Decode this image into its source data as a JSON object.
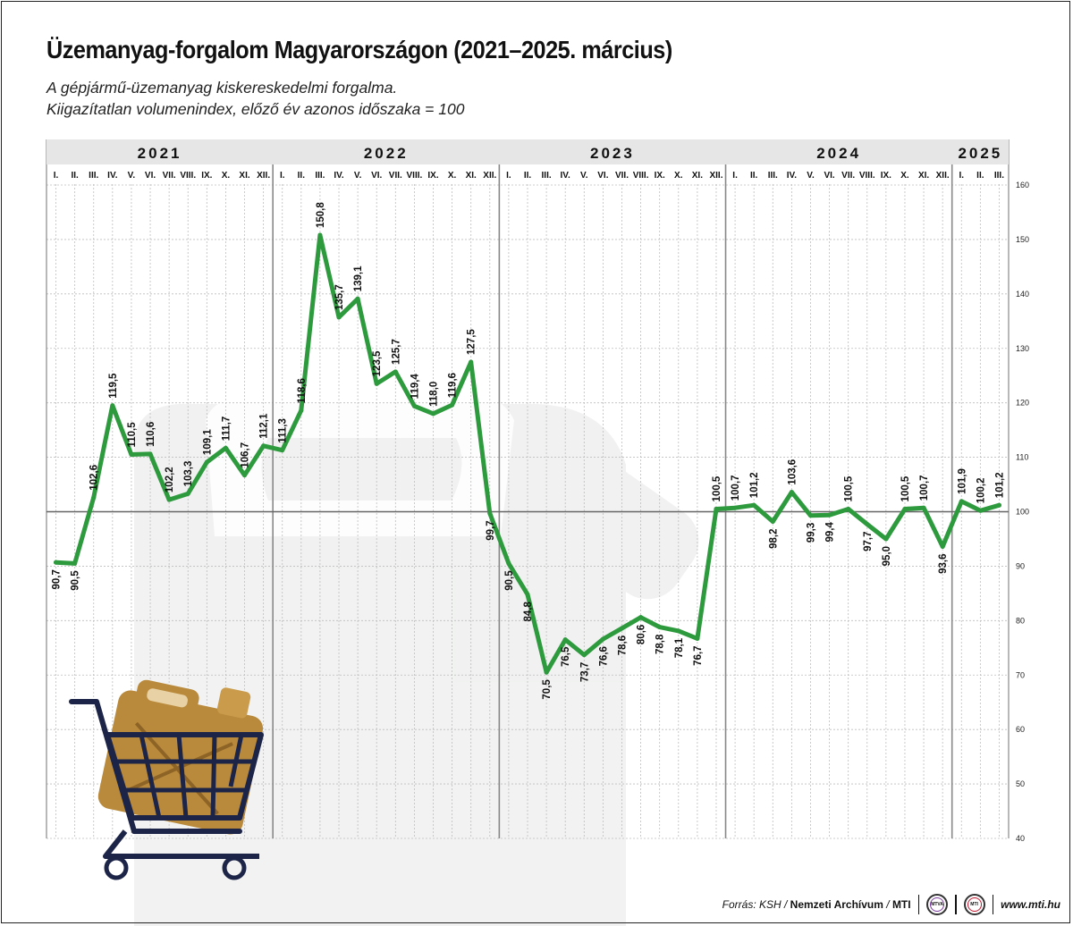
{
  "title": "Üzemanyag-forgalom Magyarországon (2021–2025. március)",
  "subtitle_line1": "A gépjármű-üzemanyag kiskereskedelmi forgalma.",
  "subtitle_line2": "Kiigazítatlan volumenindex, előző év azonos időszaka = 100",
  "footer": {
    "source_prefix": "Forrás: KSH / ",
    "source_archive": "Nemzeti Archívum",
    "source_sep": " / ",
    "source_mti": "MTI",
    "logo_mtva": "MTVA",
    "logo_mti": "MTI",
    "url": "www.mti.hu"
  },
  "colors": {
    "line": "#2e9a3e",
    "grid": "#bdbdbd",
    "header_bg": "#e6e6e6",
    "cart": "#1c2447",
    "canister": "#b98a3c"
  },
  "icons": [
    "shopping-cart-icon",
    "fuel-canister-icon"
  ],
  "chart_data": {
    "type": "line",
    "years": [
      "2021",
      "2022",
      "2023",
      "2024",
      "2025"
    ],
    "months": [
      "I.",
      "II.",
      "III.",
      "IV.",
      "V.",
      "VI.",
      "VII.",
      "VIII.",
      "IX.",
      "X.",
      "XI.",
      "XII."
    ],
    "months_2025": [
      "I.",
      "II.",
      "III."
    ],
    "ylim": [
      40,
      160
    ],
    "yticks": [
      "40",
      "50",
      "60",
      "70",
      "80",
      "90",
      "100",
      "110",
      "120",
      "130",
      "140",
      "150",
      "160"
    ],
    "reference_line": 100,
    "grid": true,
    "series": [
      {
        "values": [
          90.7,
          90.5,
          102.6,
          119.5,
          110.5,
          110.6,
          102.2,
          103.3,
          109.1,
          111.7,
          106.7,
          112.1,
          111.3,
          118.6,
          150.8,
          135.7,
          139.1,
          123.5,
          125.7,
          119.4,
          118.0,
          119.6,
          127.5,
          99.7,
          90.5,
          84.8,
          70.5,
          76.5,
          73.7,
          76.6,
          78.6,
          80.6,
          78.8,
          78.1,
          76.7,
          100.5,
          100.7,
          101.2,
          98.2,
          103.6,
          99.3,
          99.4,
          100.5,
          97.7,
          95.0,
          100.5,
          100.7,
          93.6,
          101.9,
          100.2,
          101.2
        ],
        "labels": [
          "90,7",
          "90,5",
          "102,6",
          "119,5",
          "110,5",
          "110,6",
          "102,2",
          "103,3",
          "109,1",
          "111,7",
          "106,7",
          "112,1",
          "111,3",
          "118,6",
          "150,8",
          "135,7",
          "139,1",
          "123,5",
          "125,7",
          "119,4",
          "118,0",
          "119,6",
          "127,5",
          "99,7",
          "90,5",
          "84,8",
          "70,5",
          "76,5",
          "73,7",
          "76,6",
          "78,6",
          "80,6",
          "78,8",
          "78,1",
          "76,7",
          "100,5",
          "100,7",
          "101,2",
          "98,2",
          "103,6",
          "99,3",
          "99,4",
          "100,5",
          "97,7",
          "95,0",
          "100,5",
          "100,7",
          "93,6",
          "101,9",
          "100,2",
          "101,2"
        ],
        "label_side": [
          "below",
          "below",
          "above",
          "above",
          "above",
          "above",
          "above",
          "above",
          "above",
          "above",
          "above",
          "above",
          "above",
          "above",
          "above",
          "above",
          "above",
          "above",
          "above",
          "above",
          "above",
          "above",
          "above",
          "below",
          "below",
          "below",
          "below",
          "below",
          "below",
          "below",
          "below",
          "below",
          "below",
          "below",
          "below",
          "above",
          "above",
          "above",
          "below",
          "above",
          "below",
          "below",
          "above",
          "below",
          "below",
          "above",
          "above",
          "below",
          "above",
          "above",
          "above"
        ]
      }
    ]
  }
}
